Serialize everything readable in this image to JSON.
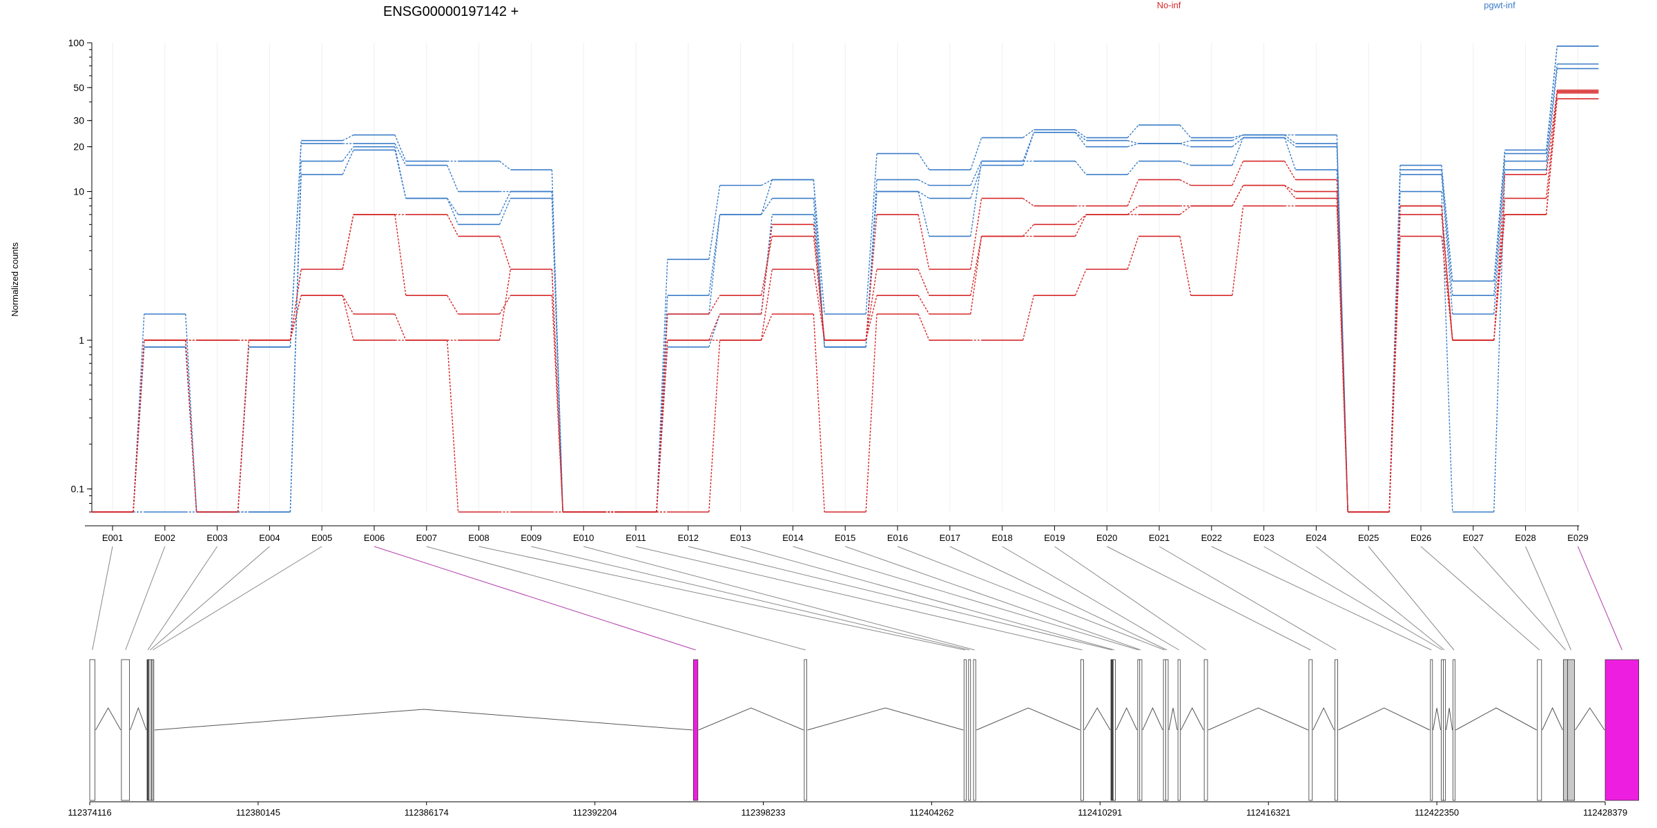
{
  "chart_data": {
    "type": "line",
    "title": "ENSG00000197142 +",
    "ylabel": "Normalized counts",
    "y_scale": "log",
    "ylim": [
      0.07,
      100
    ],
    "y_ticks": [
      {
        "value": 100,
        "label": "100"
      },
      {
        "value": 50,
        "label": "50"
      },
      {
        "value": 30,
        "label": "30"
      },
      {
        "value": 20,
        "label": "20"
      },
      {
        "value": 10,
        "label": "10"
      },
      {
        "value": 1,
        "label": "1"
      },
      {
        "value": 0.1,
        "label": "0.1"
      }
    ],
    "categories": [
      "E001",
      "E002",
      "E003",
      "E004",
      "E005",
      "E006",
      "E007",
      "E008",
      "E009",
      "E010",
      "E011",
      "E012",
      "E013",
      "E014",
      "E015",
      "E016",
      "E017",
      "E018",
      "E019",
      "E020",
      "E021",
      "E022",
      "E023",
      "E024",
      "E025",
      "E026",
      "E027",
      "E028",
      "E029"
    ],
    "legend": {
      "placement": "top",
      "entries": [
        {
          "label": "No-inf",
          "color": "#d62728"
        },
        {
          "label": "pgwt-inf",
          "color": "#3a7dc9"
        }
      ]
    },
    "colors": {
      "No-inf": "#d62728",
      "pgwt-inf": "#3a7dc9",
      "highlight": "#ee1ee0"
    },
    "series": [
      {
        "group": "pgwt-inf",
        "values": [
          0.07,
          1.5,
          0.07,
          0.9,
          22,
          24,
          16,
          16,
          14,
          0.07,
          0.07,
          3.5,
          11,
          12,
          1.5,
          18,
          14,
          23,
          26,
          23,
          28,
          23,
          24,
          24,
          0.07,
          15,
          2.5,
          19,
          95
        ]
      },
      {
        "group": "pgwt-inf",
        "values": [
          0.07,
          0.9,
          0.07,
          0.9,
          21,
          21,
          15,
          10,
          10,
          0.07,
          0.07,
          2,
          7,
          9,
          0.9,
          12,
          11,
          16,
          25,
          22,
          21,
          22,
          24,
          21,
          0.07,
          14,
          2,
          18,
          95
        ]
      },
      {
        "group": "pgwt-inf",
        "values": [
          0.07,
          0.9,
          0.07,
          0.07,
          16,
          20,
          9,
          7,
          10,
          0.07,
          0.07,
          1.5,
          7,
          12,
          0.9,
          10,
          9,
          15,
          25,
          20,
          21,
          20,
          23,
          20,
          0.07,
          13,
          1.5,
          16,
          72
        ]
      },
      {
        "group": "pgwt-inf",
        "values": [
          0.07,
          0.07,
          0.07,
          0.07,
          13,
          19,
          9,
          6,
          9,
          0.07,
          0.07,
          0.9,
          1.5,
          7,
          0.9,
          10,
          5,
          16,
          16,
          13,
          16,
          15,
          23,
          14,
          0.07,
          10,
          0.07,
          14,
          67
        ]
      },
      {
        "group": "No-inf",
        "values": [
          0.07,
          1,
          1,
          1,
          3,
          7,
          7,
          5,
          3,
          0.07,
          0.07,
          1.5,
          2,
          5,
          1,
          7,
          3,
          9,
          8,
          8,
          12,
          11,
          16,
          12,
          0.07,
          8,
          1,
          13,
          48
        ]
      },
      {
        "group": "No-inf",
        "values": [
          0.07,
          1,
          1,
          1,
          3,
          7,
          2,
          1.5,
          2,
          0.07,
          0.07,
          1,
          1.5,
          6,
          1,
          3,
          2,
          5,
          6,
          7,
          8,
          8,
          11,
          10,
          0.07,
          8,
          1,
          9,
          47
        ]
      },
      {
        "group": "No-inf",
        "values": [
          0.07,
          1,
          0.07,
          1,
          2,
          1.5,
          1,
          1,
          3,
          0.07,
          0.07,
          1,
          1,
          3,
          1,
          2,
          1.5,
          5,
          5,
          7,
          7,
          8,
          11,
          9,
          0.07,
          7,
          1,
          7,
          46
        ]
      },
      {
        "group": "No-inf",
        "values": [
          0.07,
          1,
          0.07,
          1,
          2,
          1,
          1,
          0.07,
          0.07,
          0.07,
          0.07,
          0.07,
          1,
          1.5,
          0.07,
          1.5,
          1,
          1,
          2,
          3,
          5,
          2,
          8,
          8,
          0.07,
          5,
          1,
          7,
          42
        ]
      }
    ],
    "gene_model": {
      "genomic_ticks": [
        "112374116",
        "112380145",
        "112386174",
        "112392204",
        "112398233",
        "112404262",
        "112410291",
        "112416321",
        "112422350",
        "112428379"
      ],
      "range": [
        112374116,
        112428379
      ],
      "exons": [
        {
          "id": "E001",
          "start": 112374116,
          "end": 112374302,
          "fill": "none"
        },
        {
          "id": "E002",
          "start": 112375250,
          "end": 112375540,
          "fill": "none"
        },
        {
          "id": "E003",
          "start": 112376168,
          "end": 112376222,
          "fill": "dark"
        },
        {
          "id": "E004",
          "start": 112376222,
          "end": 112376335,
          "fill": "grey"
        },
        {
          "id": "E005",
          "start": 112376335,
          "end": 112376410,
          "fill": "grey"
        },
        {
          "id": "E006",
          "start": 112395730,
          "end": 112395890,
          "fill": "highlight"
        },
        {
          "id": "E007",
          "start": 112399700,
          "end": 112399790,
          "fill": "none"
        },
        {
          "id": "E008",
          "start": 112405420,
          "end": 112405500,
          "fill": "none"
        },
        {
          "id": "E009",
          "start": 112405580,
          "end": 112405650,
          "fill": "none"
        },
        {
          "id": "E010",
          "start": 112405760,
          "end": 112405840,
          "fill": "none"
        },
        {
          "id": "E011",
          "start": 112409600,
          "end": 112409700,
          "fill": "none"
        },
        {
          "id": "E012",
          "start": 112410680,
          "end": 112410760,
          "fill": "dark"
        },
        {
          "id": "E013",
          "start": 112410760,
          "end": 112410840,
          "fill": "none"
        },
        {
          "id": "E014",
          "start": 112411640,
          "end": 112411710,
          "fill": "none"
        },
        {
          "id": "E015",
          "start": 112411710,
          "end": 112411790,
          "fill": "none"
        },
        {
          "id": "E016",
          "start": 112412560,
          "end": 112412640,
          "fill": "none"
        },
        {
          "id": "E017",
          "start": 112412640,
          "end": 112412730,
          "fill": "none"
        },
        {
          "id": "E018",
          "start": 112413080,
          "end": 112413160,
          "fill": "none"
        },
        {
          "id": "E019",
          "start": 112414020,
          "end": 112414140,
          "fill": "none"
        },
        {
          "id": "E020",
          "start": 112417770,
          "end": 112417890,
          "fill": "none"
        },
        {
          "id": "E021",
          "start": 112418700,
          "end": 112418800,
          "fill": "none"
        },
        {
          "id": "E022",
          "start": 112422120,
          "end": 112422190,
          "fill": "none"
        },
        {
          "id": "E023",
          "start": 112422510,
          "end": 112422580,
          "fill": "none"
        },
        {
          "id": "E024",
          "start": 112422580,
          "end": 112422660,
          "fill": "none"
        },
        {
          "id": "E025",
          "start": 112422930,
          "end": 112423000,
          "fill": "none"
        },
        {
          "id": "E026",
          "start": 112425950,
          "end": 112426100,
          "fill": "none"
        },
        {
          "id": "E027",
          "start": 112426880,
          "end": 112427030,
          "fill": "grey"
        },
        {
          "id": "E028",
          "start": 112427030,
          "end": 112427280,
          "fill": "grey"
        },
        {
          "id": "E029",
          "start": 112428379,
          "end": 112429580,
          "fill": "highlight"
        }
      ],
      "introns": [
        [
          0,
          1
        ],
        [
          1,
          4
        ],
        [
          4,
          5
        ],
        [
          5,
          6
        ],
        [
          6,
          7
        ],
        [
          9,
          10
        ],
        [
          10,
          11
        ],
        [
          13,
          14
        ],
        [
          15,
          16
        ],
        [
          16,
          17
        ],
        [
          17,
          18
        ],
        [
          18,
          19
        ],
        [
          19,
          20
        ],
        [
          20,
          21
        ],
        [
          21,
          22
        ],
        [
          24,
          25
        ],
        [
          25,
          26
        ],
        [
          28,
          28
        ]
      ]
    }
  }
}
